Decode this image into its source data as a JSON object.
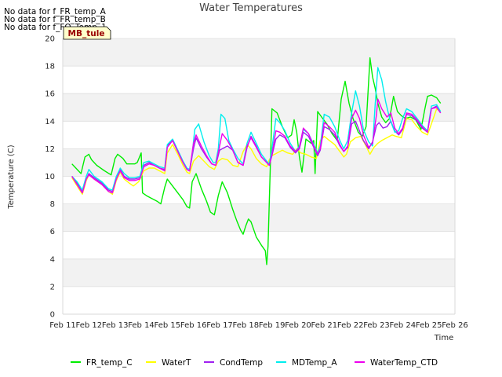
{
  "chart_data": {
    "type": "line",
    "title": "Water Temperatures",
    "xlabel": "Time",
    "ylabel": "Temperature (C)",
    "ylim": [
      0,
      20
    ],
    "xlim": [
      11,
      26
    ],
    "x_ticks": [
      11,
      12,
      13,
      14,
      15,
      16,
      17,
      18,
      19,
      20,
      21,
      22,
      23,
      24,
      25,
      26
    ],
    "x_tick_labels": [
      "Feb 11",
      "Feb 12",
      "Feb 13",
      "Feb 14",
      "Feb 15",
      "Feb 16",
      "Feb 17",
      "Feb 18",
      "Feb 19",
      "Feb 20",
      "Feb 21",
      "Feb 22",
      "Feb 23",
      "Feb 24",
      "Feb 25",
      "Feb 26"
    ],
    "y_ticks": [
      0,
      2,
      4,
      6,
      8,
      10,
      12,
      14,
      16,
      18,
      20
    ],
    "grid": true,
    "legend_position": "bottom",
    "no_data_messages": [
      "No data for f_FR_temp_A",
      "No data for f_FR_temp_B",
      "No data for f_FO_Temp_1"
    ],
    "annotation": "MB_tule",
    "series": [
      {
        "name": "FR_temp_C",
        "color": "#00ee00",
        "x": [
          11.35,
          11.5,
          11.7,
          11.85,
          12.0,
          12.1,
          12.3,
          12.6,
          12.85,
          13.0,
          13.1,
          13.3,
          13.45,
          13.6,
          13.75,
          13.85,
          14.0,
          14.05,
          14.2,
          14.4,
          14.6,
          14.75,
          14.9,
          15.0,
          15.2,
          15.4,
          15.6,
          15.75,
          15.85,
          15.95,
          16.1,
          16.3,
          16.5,
          16.65,
          16.8,
          16.95,
          17.1,
          17.3,
          17.5,
          17.65,
          17.8,
          17.9,
          18.0,
          18.1,
          18.2,
          18.4,
          18.6,
          18.75,
          18.8,
          18.85,
          19.0,
          19.2,
          19.4,
          19.6,
          19.75,
          19.85,
          19.95,
          20.05,
          20.15,
          20.3,
          20.5,
          20.6,
          20.65,
          20.75,
          20.9,
          21.1,
          21.3,
          21.5,
          21.65,
          21.8,
          21.95,
          22.1,
          22.3,
          22.45,
          22.6,
          22.75,
          22.85,
          22.95,
          23.05,
          23.2,
          23.35,
          23.5,
          23.65,
          23.8,
          23.95,
          24.1,
          24.3,
          24.5,
          24.7,
          24.85,
          24.95,
          25.1,
          25.3,
          25.45
        ],
        "y": [
          10.9,
          10.6,
          10.2,
          11.4,
          11.6,
          11.2,
          10.8,
          10.4,
          10.1,
          11.3,
          11.6,
          11.3,
          10.9,
          10.9,
          10.9,
          11.0,
          11.7,
          8.8,
          8.6,
          8.4,
          8.2,
          8.0,
          9.2,
          9.8,
          9.3,
          8.8,
          8.3,
          7.8,
          7.7,
          9.6,
          10.2,
          9.1,
          8.2,
          7.4,
          7.2,
          8.6,
          9.6,
          8.8,
          7.6,
          6.8,
          6.1,
          5.8,
          6.4,
          6.9,
          6.7,
          5.6,
          5.0,
          4.6,
          3.6,
          4.9,
          14.9,
          14.6,
          13.6,
          12.8,
          13.0,
          14.1,
          13.2,
          11.4,
          10.3,
          12.7,
          12.4,
          12.6,
          10.2,
          14.7,
          14.3,
          13.8,
          13.1,
          12.6,
          15.6,
          16.9,
          15.3,
          14.2,
          13.2,
          12.9,
          13.6,
          18.6,
          17.2,
          16.4,
          15.3,
          14.3,
          13.9,
          14.2,
          15.8,
          14.7,
          14.4,
          14.2,
          14.3,
          14.1,
          13.4,
          14.9,
          15.8,
          15.9,
          15.7,
          15.3
        ]
      },
      {
        "name": "WaterT",
        "color": "#ffff00",
        "x": [
          11.35,
          11.55,
          11.75,
          11.9,
          12.0,
          12.2,
          12.5,
          12.75,
          12.9,
          13.05,
          13.2,
          13.35,
          13.55,
          13.7,
          13.9,
          14.1,
          14.3,
          14.5,
          14.7,
          14.9,
          15.0,
          15.2,
          15.4,
          15.6,
          15.75,
          15.85,
          16.0,
          16.2,
          16.4,
          16.6,
          16.8,
          16.95,
          17.1,
          17.3,
          17.5,
          17.7,
          17.9,
          18.05,
          18.2,
          18.4,
          18.6,
          18.8,
          18.9,
          19.0,
          19.2,
          19.4,
          19.6,
          19.8,
          19.95,
          20.1,
          20.3,
          20.5,
          20.7,
          20.85,
          21.0,
          21.2,
          21.4,
          21.6,
          21.75,
          21.85,
          22.0,
          22.2,
          22.4,
          22.6,
          22.75,
          22.9,
          23.05,
          23.2,
          23.4,
          23.6,
          23.75,
          23.95,
          24.15,
          24.35,
          24.55,
          24.75,
          24.95,
          25.1,
          25.3,
          25.45
        ],
        "y": [
          9.9,
          9.3,
          8.7,
          9.7,
          10.1,
          9.8,
          9.4,
          8.9,
          8.7,
          9.7,
          10.3,
          9.8,
          9.5,
          9.3,
          9.6,
          10.4,
          10.6,
          10.6,
          10.4,
          10.2,
          11.7,
          12.3,
          11.6,
          10.8,
          10.3,
          10.2,
          11.1,
          11.5,
          11.1,
          10.7,
          10.5,
          11.1,
          11.3,
          11.2,
          10.8,
          10.7,
          11.8,
          12.3,
          12.0,
          11.3,
          10.9,
          10.7,
          11.2,
          11.5,
          11.7,
          11.9,
          11.7,
          11.6,
          12.0,
          11.7,
          11.6,
          11.4,
          11.3,
          12.6,
          12.9,
          12.6,
          12.3,
          11.8,
          11.4,
          11.6,
          12.5,
          12.8,
          12.9,
          12.2,
          11.6,
          12.1,
          12.4,
          12.6,
          12.8,
          13.0,
          12.9,
          12.8,
          14.2,
          14.1,
          13.6,
          13.2,
          13.0,
          13.8,
          14.9,
          14.7
        ]
      },
      {
        "name": "CondTemp",
        "color": "#a020f0",
        "x": [
          11.35,
          11.55,
          11.75,
          11.9,
          12.0,
          12.2,
          12.5,
          12.75,
          12.9,
          13.05,
          13.2,
          13.35,
          13.55,
          13.75,
          13.95,
          14.1,
          14.3,
          14.5,
          14.7,
          14.9,
          15.0,
          15.2,
          15.4,
          15.6,
          15.75,
          15.85,
          16.0,
          16.1,
          16.3,
          16.5,
          16.7,
          16.85,
          17.0,
          17.1,
          17.3,
          17.5,
          17.7,
          17.9,
          18.05,
          18.2,
          18.4,
          18.6,
          18.8,
          18.9,
          19.0,
          19.15,
          19.3,
          19.5,
          19.7,
          19.9,
          20.05,
          20.2,
          20.4,
          20.6,
          20.75,
          20.85,
          21.0,
          21.2,
          21.4,
          21.6,
          21.75,
          21.9,
          22.05,
          22.2,
          22.35,
          22.5,
          22.7,
          22.85,
          23.0,
          23.1,
          23.25,
          23.4,
          23.55,
          23.7,
          23.85,
          24.0,
          24.15,
          24.35,
          24.55,
          24.75,
          24.95,
          25.1,
          25.3,
          25.45
        ],
        "y": [
          10.0,
          9.5,
          8.9,
          9.8,
          10.2,
          9.9,
          9.5,
          9.0,
          8.9,
          9.9,
          10.5,
          10.0,
          9.8,
          9.8,
          9.9,
          10.8,
          11.0,
          10.8,
          10.6,
          10.5,
          12.2,
          12.6,
          11.8,
          11.0,
          10.5,
          10.4,
          12.0,
          12.8,
          12.0,
          11.4,
          10.9,
          10.8,
          11.9,
          12.0,
          12.2,
          11.9,
          11.0,
          10.8,
          12.1,
          12.9,
          12.2,
          11.4,
          11.0,
          10.8,
          11.5,
          12.7,
          13.0,
          12.8,
          12.1,
          11.7,
          12.0,
          13.2,
          12.9,
          12.1,
          11.5,
          11.9,
          13.6,
          13.4,
          13.0,
          12.2,
          11.8,
          12.1,
          13.8,
          14.0,
          13.3,
          12.6,
          12.0,
          12.5,
          13.7,
          13.9,
          13.5,
          13.6,
          14.0,
          13.3,
          13.0,
          13.4,
          14.5,
          14.4,
          14.0,
          13.5,
          13.2,
          14.9,
          15.1,
          14.6
        ]
      },
      {
        "name": "MDTemp_A",
        "color": "#00eeee",
        "x": [
          11.35,
          11.55,
          11.75,
          11.9,
          12.0,
          12.2,
          12.5,
          12.75,
          12.9,
          13.05,
          13.2,
          13.35,
          13.55,
          13.75,
          13.95,
          14.1,
          14.3,
          14.5,
          14.7,
          14.9,
          15.0,
          15.2,
          15.4,
          15.6,
          15.75,
          15.85,
          15.95,
          16.05,
          16.2,
          16.4,
          16.6,
          16.75,
          16.85,
          16.95,
          17.05,
          17.2,
          17.35,
          17.5,
          17.7,
          17.9,
          18.05,
          18.2,
          18.4,
          18.6,
          18.8,
          18.9,
          19.0,
          19.15,
          19.3,
          19.5,
          19.7,
          19.9,
          20.05,
          20.2,
          20.4,
          20.6,
          20.75,
          20.85,
          21.0,
          21.2,
          21.4,
          21.6,
          21.75,
          21.9,
          22.05,
          22.2,
          22.35,
          22.5,
          22.7,
          22.85,
          22.95,
          23.05,
          23.2,
          23.35,
          23.5,
          23.7,
          23.85,
          24.0,
          24.15,
          24.35,
          24.55,
          24.75,
          24.95,
          25.1,
          25.3,
          25.45
        ],
        "y": [
          10.0,
          9.6,
          9.0,
          10.0,
          10.5,
          10.0,
          9.6,
          9.1,
          9.0,
          10.0,
          10.6,
          10.2,
          9.9,
          9.9,
          10.0,
          11.0,
          11.1,
          10.9,
          10.7,
          10.6,
          12.3,
          12.7,
          11.9,
          11.1,
          10.6,
          10.5,
          11.6,
          13.4,
          13.8,
          12.5,
          11.5,
          11.0,
          11.0,
          12.0,
          14.5,
          14.2,
          12.6,
          12.0,
          11.3,
          10.9,
          12.4,
          13.2,
          12.4,
          11.6,
          11.1,
          10.9,
          12.0,
          14.2,
          13.9,
          13.3,
          12.4,
          11.8,
          12.2,
          13.4,
          13.1,
          12.3,
          11.7,
          12.2,
          14.5,
          14.3,
          13.6,
          12.6,
          12.0,
          12.6,
          14.6,
          16.2,
          15.1,
          13.4,
          12.5,
          12.2,
          15.2,
          17.9,
          17.0,
          15.4,
          14.2,
          13.2,
          13.3,
          14.2,
          14.9,
          14.7,
          14.2,
          13.7,
          13.3,
          15.1,
          15.2,
          14.7
        ]
      },
      {
        "name": "WaterTemp_CTD",
        "color": "#ee00ee",
        "x": [
          11.35,
          11.55,
          11.75,
          11.9,
          12.0,
          12.2,
          12.5,
          12.75,
          12.9,
          13.05,
          13.2,
          13.35,
          13.55,
          13.75,
          13.95,
          14.1,
          14.3,
          14.5,
          14.7,
          14.9,
          15.0,
          15.2,
          15.4,
          15.6,
          15.75,
          15.85,
          16.0,
          16.1,
          16.3,
          16.5,
          16.7,
          16.85,
          17.0,
          17.1,
          17.3,
          17.5,
          17.7,
          17.9,
          18.05,
          18.2,
          18.4,
          18.6,
          18.8,
          18.9,
          19.0,
          19.15,
          19.3,
          19.5,
          19.7,
          19.9,
          20.05,
          20.2,
          20.4,
          20.6,
          20.75,
          20.85,
          21.0,
          21.2,
          21.4,
          21.6,
          21.75,
          21.9,
          22.05,
          22.2,
          22.35,
          22.5,
          22.7,
          22.85,
          23.0,
          23.05,
          23.2,
          23.4,
          23.55,
          23.7,
          23.85,
          24.0,
          24.15,
          24.35,
          24.55,
          24.75,
          24.95,
          25.1,
          25.3,
          25.45
        ],
        "y": [
          10.0,
          9.4,
          8.8,
          9.8,
          10.1,
          9.8,
          9.4,
          8.9,
          8.8,
          9.8,
          10.4,
          9.9,
          9.7,
          9.7,
          9.8,
          10.7,
          10.9,
          10.8,
          10.6,
          10.4,
          12.1,
          12.6,
          11.8,
          11.0,
          10.5,
          10.4,
          12.4,
          13.0,
          12.2,
          11.5,
          10.9,
          10.8,
          12.2,
          13.1,
          12.6,
          11.9,
          11.0,
          10.8,
          12.2,
          12.8,
          12.1,
          11.4,
          11.0,
          10.8,
          11.6,
          13.3,
          13.2,
          12.9,
          12.2,
          11.8,
          12.1,
          13.5,
          13.1,
          12.2,
          11.6,
          12.0,
          13.9,
          13.6,
          13.2,
          12.3,
          11.8,
          12.2,
          14.2,
          14.8,
          14.2,
          13.0,
          12.1,
          12.4,
          14.5,
          15.6,
          14.9,
          14.3,
          14.6,
          13.5,
          13.1,
          13.5,
          14.6,
          14.5,
          14.1,
          13.6,
          13.2,
          14.9,
          15.0,
          14.6
        ]
      }
    ]
  }
}
